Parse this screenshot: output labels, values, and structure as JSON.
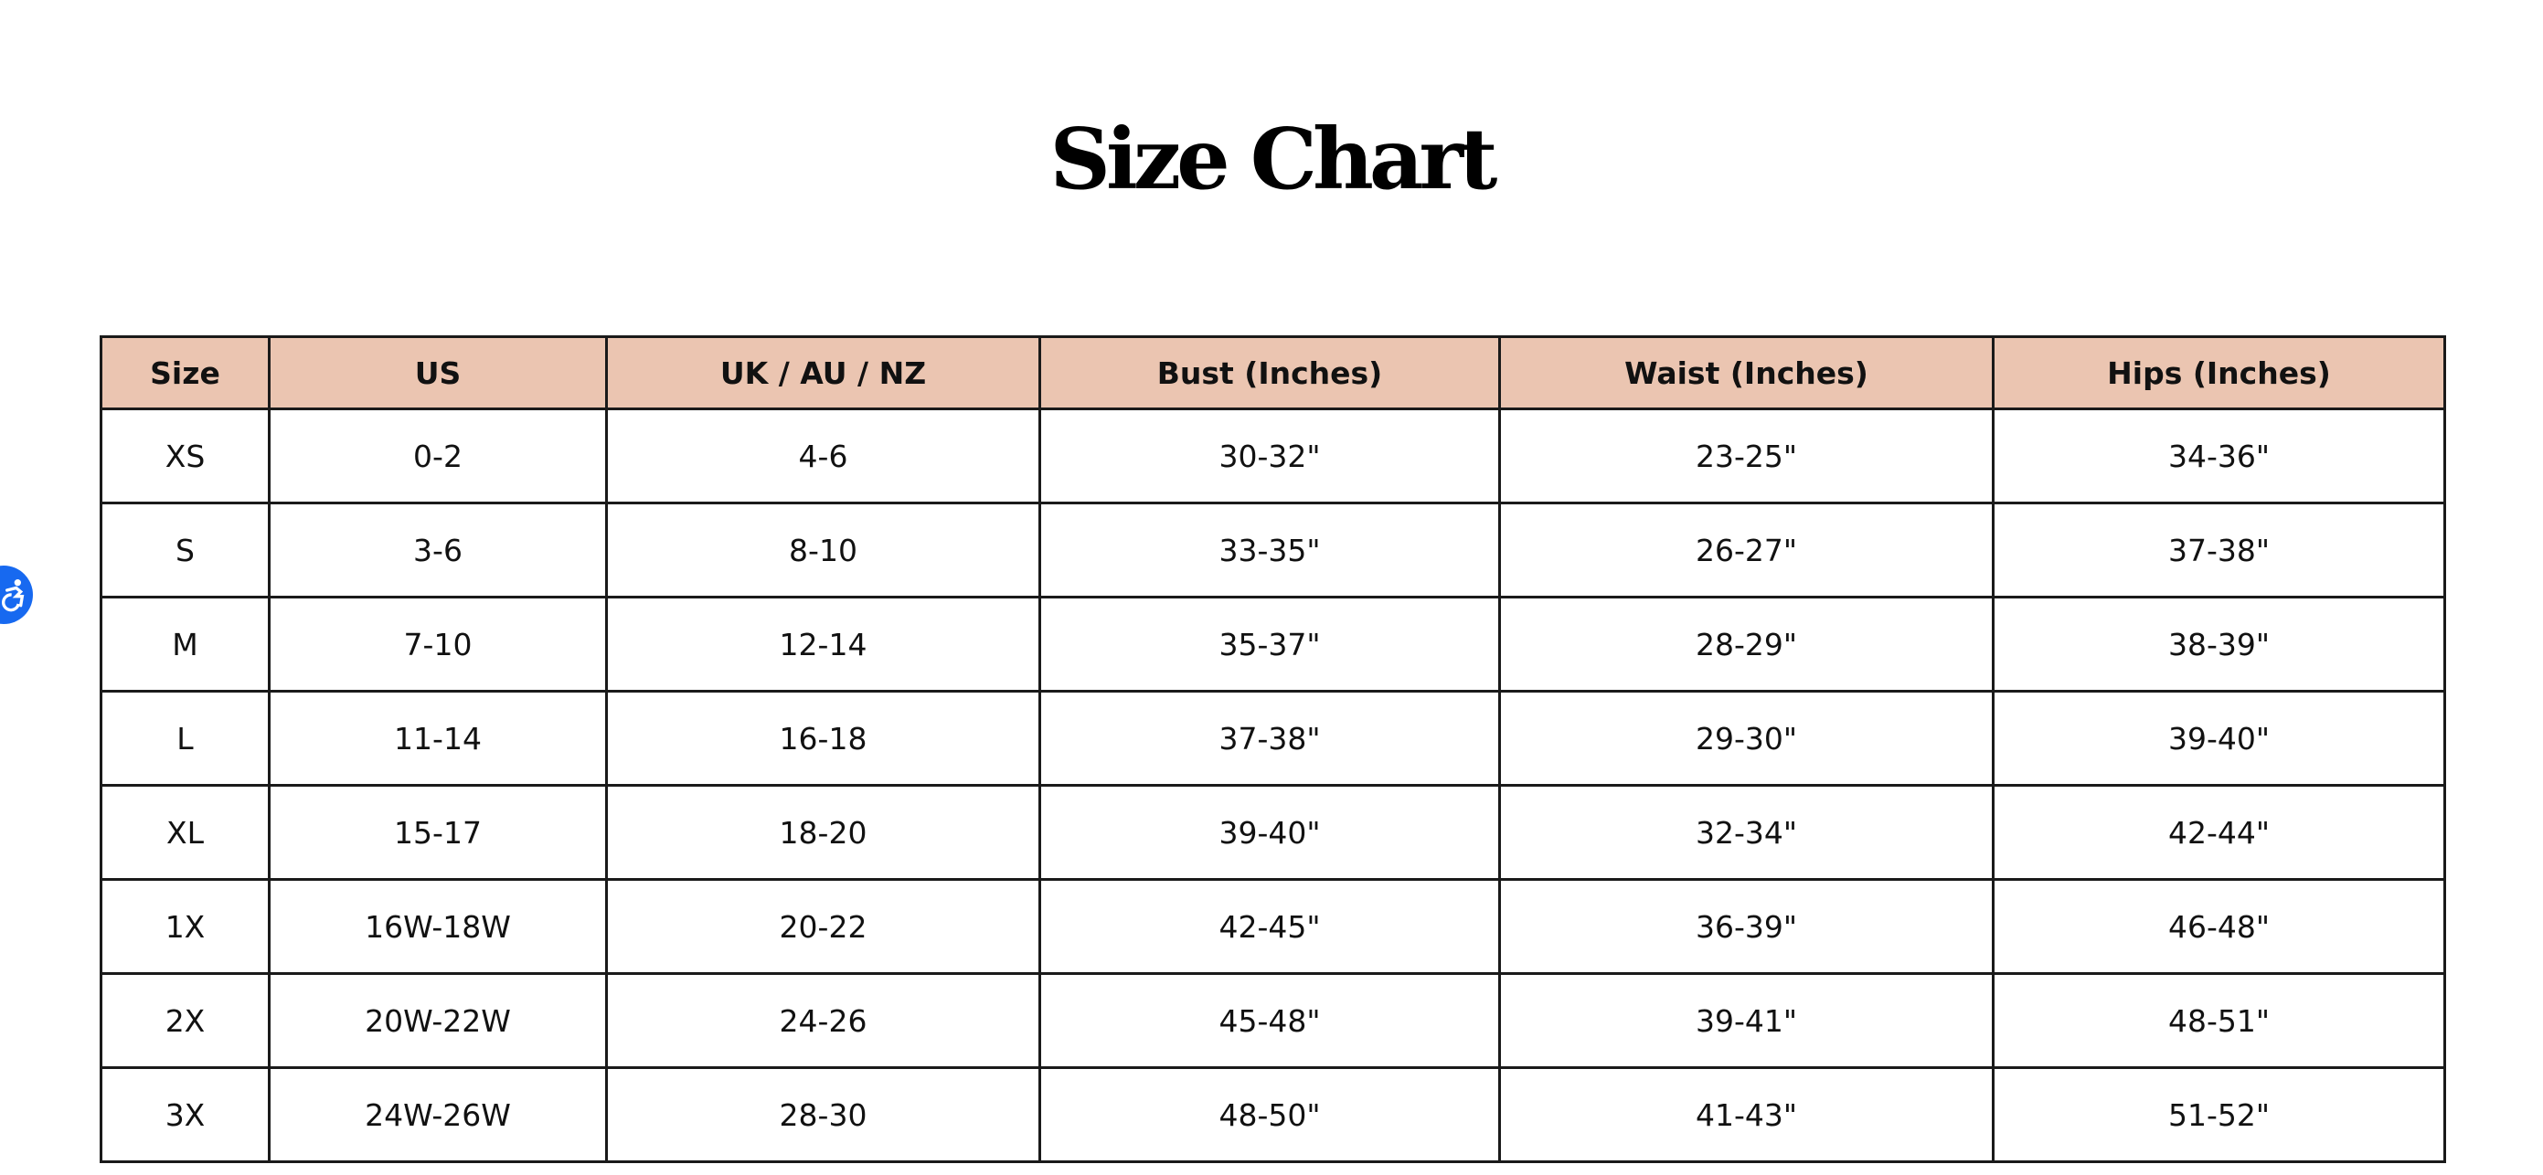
{
  "title": "Size Chart",
  "accessibility_button": {
    "icon": "accessibility-icon",
    "color": "#1769f0"
  },
  "header_color": "#ebc5b1",
  "table": {
    "headers": [
      "Size",
      "US",
      "UK / AU / NZ",
      "Bust (Inches)",
      "Waist (Inches)",
      "Hips (Inches)"
    ],
    "rows": [
      [
        "XS",
        "0-2",
        "4-6",
        "30-32\"",
        "23-25\"",
        "34-36\""
      ],
      [
        "S",
        "3-6",
        "8-10",
        "33-35\"",
        "26-27\"",
        "37-38\""
      ],
      [
        "M",
        "7-10",
        "12-14",
        "35-37\"",
        "28-29\"",
        "38-39\""
      ],
      [
        "L",
        "11-14",
        "16-18",
        "37-38\"",
        "29-30\"",
        "39-40\""
      ],
      [
        "XL",
        "15-17",
        "18-20",
        "39-40\"",
        "32-34\"",
        "42-44\""
      ],
      [
        "1X",
        "16W-18W",
        "20-22",
        "42-45\"",
        "36-39\"",
        "46-48\""
      ],
      [
        "2X",
        "20W-22W",
        "24-26",
        "45-48\"",
        "39-41\"",
        "48-51\""
      ],
      [
        "3X",
        "24W-26W",
        "28-30",
        "48-50\"",
        "41-43\"",
        "51-52\""
      ]
    ]
  }
}
